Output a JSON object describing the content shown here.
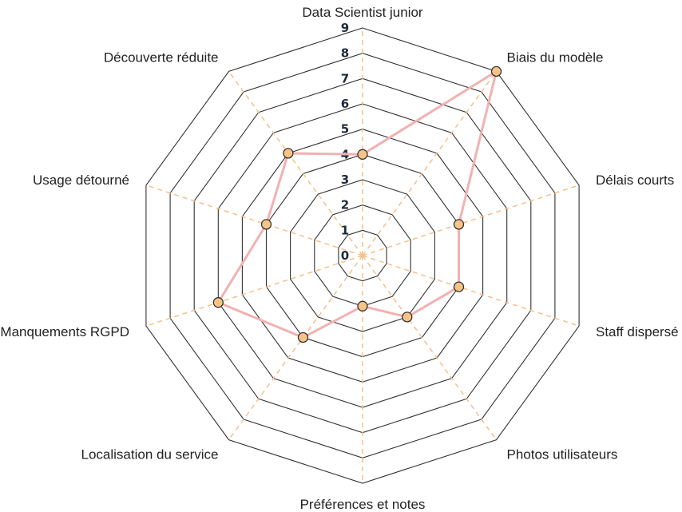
{
  "chart_data": {
    "type": "radar",
    "title": "",
    "axes": [
      "Data Scientist junior",
      "Biais du modèle",
      "Délais courts",
      "Staff dispersé",
      "Photos utilisateurs",
      "Préférences et notes",
      "Localisation du service",
      "Manquements RGPD",
      "Usage détourné",
      "Découverte réduite"
    ],
    "series": [
      {
        "values": [
          4,
          9,
          4,
          4,
          3,
          2,
          4,
          6,
          4,
          5
        ]
      }
    ],
    "rlim": [
      0,
      9
    ],
    "ticks": [
      "0",
      "1",
      "2",
      "3",
      "4",
      "5",
      "6",
      "7",
      "8",
      "9"
    ],
    "grid": true,
    "legend": "none",
    "colors": {
      "grid": "#333333",
      "spokes": "#f5c08a",
      "line": "#f2b1b0",
      "marker_fill": "#f8c486",
      "marker_stroke": "#333333",
      "tick_text": "#1e2a3a"
    }
  }
}
